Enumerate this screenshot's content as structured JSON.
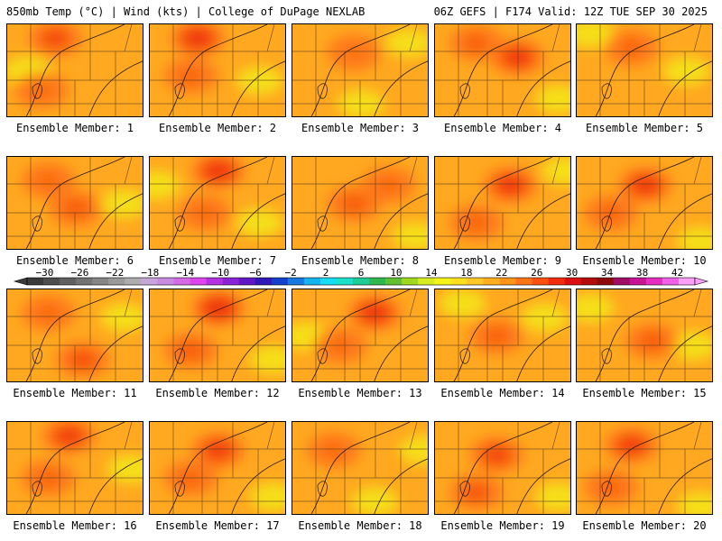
{
  "header": {
    "left": "850mb Temp (°C) | Wind (kts) | College of DuPage NEXLAB",
    "right": "06Z GEFS | F174 Valid: 12Z TUE SEP 30 2025"
  },
  "member_label_prefix": "Ensemble Member:",
  "members": [
    {
      "id": 1,
      "label": "Ensemble Member: 1",
      "warm": [
        [
          0.35,
          0.15,
          0.6
        ],
        [
          0.25,
          0.7,
          0.3
        ]
      ],
      "cool": [
        [
          0.15,
          0.5,
          0.2
        ]
      ]
    },
    {
      "id": 2,
      "label": "Ensemble Member: 2",
      "warm": [
        [
          0.35,
          0.15,
          0.8
        ],
        [
          0.3,
          0.55,
          0.35
        ]
      ],
      "cool": [
        [
          0.8,
          0.6,
          0.2
        ]
      ]
    },
    {
      "id": 3,
      "label": "Ensemble Member: 3",
      "warm": [
        [
          0.45,
          0.3,
          0.2
        ]
      ],
      "cool": [
        [
          0.85,
          0.2,
          0.3
        ],
        [
          0.5,
          0.85,
          0.25
        ]
      ]
    },
    {
      "id": 4,
      "label": "Ensemble Member: 4",
      "warm": [
        [
          0.6,
          0.35,
          0.75
        ],
        [
          0.3,
          0.2,
          0.4
        ]
      ],
      "cool": [
        [
          0.9,
          0.8,
          0.2
        ]
      ]
    },
    {
      "id": 5,
      "label": "Ensemble Member: 5",
      "warm": [
        [
          0.4,
          0.25,
          0.35
        ]
      ],
      "cool": [
        [
          0.8,
          0.5,
          0.3
        ],
        [
          0.1,
          0.1,
          0.2
        ]
      ]
    },
    {
      "id": 6,
      "label": "Ensemble Member: 6",
      "warm": [
        [
          0.5,
          0.55,
          0.45
        ],
        [
          0.3,
          0.25,
          0.3
        ]
      ],
      "cool": [
        [
          0.85,
          0.5,
          0.25
        ]
      ]
    },
    {
      "id": 7,
      "label": "Ensemble Member: 7",
      "warm": [
        [
          0.5,
          0.15,
          0.8
        ],
        [
          0.4,
          0.6,
          0.3
        ]
      ],
      "cool": [
        [
          0.05,
          0.3,
          0.2
        ],
        [
          0.8,
          0.7,
          0.2
        ]
      ]
    },
    {
      "id": 8,
      "label": "Ensemble Member: 8",
      "warm": [
        [
          0.45,
          0.5,
          0.45
        ],
        [
          0.7,
          0.3,
          0.3
        ]
      ],
      "cool": [
        [
          0.9,
          0.85,
          0.2
        ]
      ]
    },
    {
      "id": 9,
      "label": "Ensemble Member: 9",
      "warm": [
        [
          0.55,
          0.3,
          0.75
        ],
        [
          0.3,
          0.7,
          0.35
        ]
      ],
      "cool": [
        [
          0.95,
          0.15,
          0.2
        ]
      ]
    },
    {
      "id": 10,
      "label": "Ensemble Member: 10",
      "warm": [
        [
          0.5,
          0.3,
          0.75
        ],
        [
          0.25,
          0.6,
          0.35
        ]
      ],
      "cool": [
        [
          0.9,
          0.9,
          0.2
        ]
      ]
    },
    {
      "id": 11,
      "label": "Ensemble Member: 11",
      "warm": [
        [
          0.55,
          0.75,
          0.55
        ],
        [
          0.3,
          0.25,
          0.3
        ]
      ],
      "cool": [
        [
          0.85,
          0.3,
          0.25
        ]
      ]
    },
    {
      "id": 12,
      "label": "Ensemble Member: 12",
      "warm": [
        [
          0.5,
          0.2,
          0.85
        ],
        [
          0.3,
          0.65,
          0.45
        ]
      ],
      "cool": [
        [
          0.9,
          0.75,
          0.2
        ]
      ]
    },
    {
      "id": 13,
      "label": "Ensemble Member: 13",
      "warm": [
        [
          0.6,
          0.25,
          0.8
        ],
        [
          0.35,
          0.6,
          0.3
        ]
      ],
      "cool": [
        [
          0.1,
          0.5,
          0.2
        ]
      ]
    },
    {
      "id": 14,
      "label": "Ensemble Member: 14",
      "warm": [
        [
          0.45,
          0.5,
          0.4
        ]
      ],
      "cool": [
        [
          0.8,
          0.3,
          0.3
        ],
        [
          0.2,
          0.15,
          0.2
        ]
      ]
    },
    {
      "id": 15,
      "label": "Ensemble Member: 15",
      "warm": [
        [
          0.55,
          0.55,
          0.45
        ]
      ],
      "cool": [
        [
          0.1,
          0.2,
          0.35
        ],
        [
          0.85,
          0.6,
          0.2
        ]
      ]
    },
    {
      "id": 16,
      "label": "Ensemble Member: 16",
      "warm": [
        [
          0.45,
          0.15,
          0.7
        ],
        [
          0.3,
          0.6,
          0.35
        ]
      ],
      "cool": [
        [
          0.9,
          0.5,
          0.25
        ]
      ]
    },
    {
      "id": 17,
      "label": "Ensemble Member: 17",
      "warm": [
        [
          0.5,
          0.3,
          0.7
        ],
        [
          0.3,
          0.6,
          0.35
        ]
      ],
      "cool": [
        [
          0.9,
          0.8,
          0.2
        ]
      ]
    },
    {
      "id": 18,
      "label": "Ensemble Member: 18",
      "warm": [
        [
          0.3,
          0.3,
          0.3
        ]
      ],
      "cool": [
        [
          0.95,
          0.3,
          0.35
        ],
        [
          0.6,
          0.85,
          0.2
        ]
      ]
    },
    {
      "id": 19,
      "label": "Ensemble Member: 19",
      "warm": [
        [
          0.45,
          0.35,
          0.65
        ],
        [
          0.3,
          0.75,
          0.5
        ]
      ],
      "cool": [
        [
          0.9,
          0.8,
          0.2
        ]
      ]
    },
    {
      "id": 20,
      "label": "Ensemble Member: 20",
      "warm": [
        [
          0.4,
          0.25,
          0.7
        ],
        [
          0.25,
          0.7,
          0.35
        ]
      ],
      "cool": [
        [
          0.9,
          0.9,
          0.2
        ]
      ]
    }
  ],
  "colorbar": {
    "ticks": [
      "-30",
      "-26",
      "-22",
      "-18",
      "-14",
      "-10",
      "-6",
      "-2",
      "2",
      "6",
      "10",
      "14",
      "18",
      "22",
      "26",
      "30",
      "34",
      "38",
      "42"
    ],
    "min": -32,
    "max": 44,
    "step": 2,
    "colors": [
      "#3a3a3a",
      "#4d4d4d",
      "#606060",
      "#737373",
      "#868686",
      "#9a9a9a",
      "#adadad",
      "#c6a6d8",
      "#c98be0",
      "#d36be6",
      "#dd44ee",
      "#b530e0",
      "#8a22d6",
      "#6018c4",
      "#3018b8",
      "#1440cc",
      "#1478e0",
      "#14b4ee",
      "#16dcf4",
      "#1ce0c8",
      "#20cc96",
      "#30b850",
      "#60c030",
      "#a0d820",
      "#d8ec20",
      "#f4f41a",
      "#ffe020",
      "#ffc828",
      "#ffae20",
      "#ff9418",
      "#ff7414",
      "#ff5010",
      "#f42a10",
      "#dc1010",
      "#b40c0c",
      "#8e0a0a",
      "#a00c66",
      "#c81494",
      "#e42ec0",
      "#f060e8",
      "#f8a0f8"
    ]
  }
}
